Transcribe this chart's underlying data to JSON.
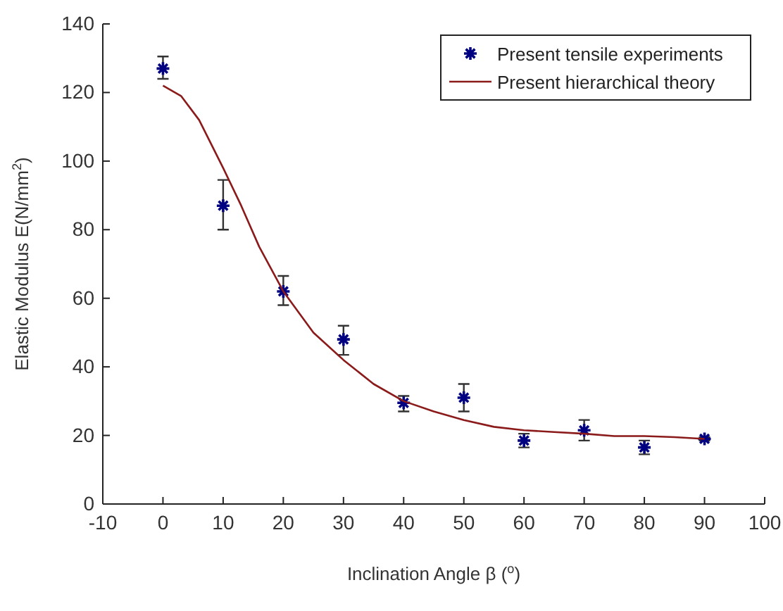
{
  "chart_data": {
    "type": "scatter",
    "xlabel": "Inclination Angle β  ($^{o}$)",
    "ylabel": "Elastic Modulus  E(N/mm$^{2}$)",
    "xlim": [
      -10,
      100
    ],
    "xticks": [
      -10,
      0,
      10,
      20,
      30,
      40,
      50,
      60,
      70,
      80,
      90,
      100
    ],
    "ylim": [
      0,
      140
    ],
    "yticks": [
      0,
      20,
      40,
      60,
      80,
      100,
      120,
      140
    ],
    "legend": "top right",
    "grid": false,
    "series": [
      {
        "name": "Present tensile experiments",
        "marker": "cross",
        "color": "#000080",
        "x": [
          0,
          10,
          20,
          30,
          40,
          50,
          60,
          70,
          80,
          90
        ],
        "values": [
          127,
          87,
          62,
          48,
          29.5,
          31,
          18.5,
          21.5,
          16.5,
          19
        ],
        "errors": [
          [
            124,
            130.5
          ],
          [
            80,
            94.5
          ],
          [
            58,
            66.5
          ],
          [
            43.5,
            52
          ],
          [
            27,
            31.5
          ],
          [
            27,
            35
          ],
          [
            16.5,
            20.5
          ],
          [
            18.5,
            24.5
          ],
          [
            14.5,
            18.5
          ],
          [
            18.5,
            19.5
          ]
        ]
      },
      {
        "name": "Present hierarchical theory",
        "type": "line",
        "marker": "none",
        "color": "#8b1a1a",
        "x": [
          0,
          3,
          6,
          10,
          13,
          16,
          20,
          25,
          30,
          35,
          40,
          45,
          50,
          55,
          60,
          65,
          70,
          75,
          80,
          85,
          90
        ],
        "values": [
          122,
          119,
          112,
          98,
          87,
          75,
          62,
          50,
          42,
          35,
          30,
          27,
          24.5,
          22.5,
          21.5,
          21,
          20.5,
          19.8,
          19.8,
          19.5,
          19
        ]
      }
    ]
  }
}
